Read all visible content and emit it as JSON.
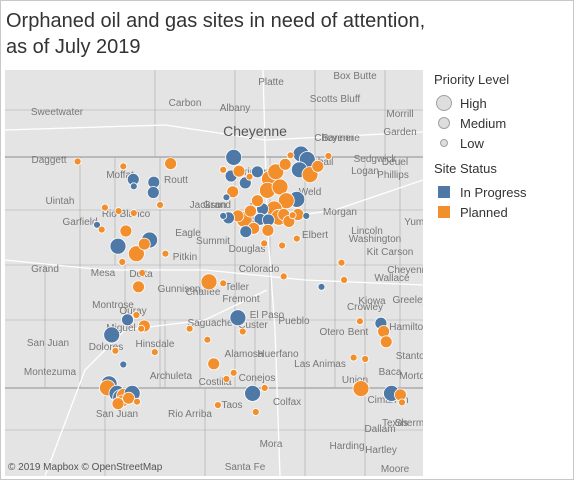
{
  "title": "Orphaned oil and gas sites in need of attention, as of July 2019",
  "attribution": "© 2019 Mapbox © OpenStreetMap",
  "colors": {
    "in_progress": "#4e79a7",
    "planned": "#f28e2b",
    "map_bg": "#e4e4e4",
    "road": "#ffffff",
    "border": "#a9a9a9",
    "label": "#777777"
  },
  "legend": {
    "priority": {
      "title": "Priority Level",
      "items": [
        {
          "label": "High",
          "size": 14
        },
        {
          "label": "Medium",
          "size": 10
        },
        {
          "label": "Low",
          "size": 6
        }
      ]
    },
    "status": {
      "title": "Site Status",
      "items": [
        {
          "label": "In Progress",
          "color": "#4e79a7"
        },
        {
          "label": "Planned",
          "color": "#f28e2b"
        }
      ]
    }
  },
  "place_labels": [
    "Platte",
    "Box Butte",
    "Carbon",
    "Albany",
    "Scotts Bluff",
    "Morrill",
    "Sweetwater",
    "Cheyenne",
    "Garden",
    "Banner",
    "Cheyenne",
    "Kimball",
    "Deuel",
    "Daggett",
    "Moffat",
    "Routt",
    "Larimer",
    "Sedgwick",
    "Logan",
    "Phillips",
    "Uintah",
    "Weld",
    "Jackson",
    "Morgan",
    "Rio Blanco",
    "Grand",
    "Boulder",
    "Washington",
    "Yuma",
    "Eagle",
    "Denver",
    "Kit Carson",
    "Garfield",
    "Douglas",
    "Summit",
    "Elbert",
    "Lincoln",
    "Grand",
    "Mesa",
    "Pitkin",
    "Delta",
    "Colorado",
    "Gunnison",
    "Chaffee",
    "Teller",
    "Wallace",
    "Cheyenne",
    "Kiowa",
    "Greeley",
    "Montrose",
    "Fremont",
    "El Paso",
    "Custer",
    "Pueblo",
    "Ouray",
    "Miguel",
    "Saguache",
    "Crowley",
    "Otero",
    "Bent",
    "Hamilton",
    "San Juan",
    "Dolores",
    "Hinsdale",
    "Alamosa",
    "Huerfano",
    "Las Animas",
    "Stanton",
    "Montezuma",
    "Archuleta",
    "Conejos",
    "Costilla",
    "Baca",
    "Morton",
    "San Juan",
    "Rio Arriba",
    "Taos",
    "Colfax",
    "Union",
    "Cimarron",
    "Texas",
    "Dallam",
    "Sherman",
    "Mora",
    "Harding",
    "Hartley",
    "Moore",
    "Santa Fe"
  ],
  "chart_data": {
    "type": "map",
    "title": "Orphaned oil and gas sites in need of attention, as of July 2019",
    "region": "Colorado",
    "encoding": {
      "color": "Site Status",
      "size": "Priority Level"
    },
    "sites": [
      {
        "lon": -107.41,
        "lat": 40.51,
        "status": "In Progress",
        "priority": "Medium"
      },
      {
        "lon": -107.4,
        "lat": 40.41,
        "status": "In Progress",
        "priority": "Low"
      },
      {
        "lon": -107.02,
        "lat": 40.47,
        "status": "In Progress",
        "priority": "Medium"
      },
      {
        "lon": -107.03,
        "lat": 40.32,
        "status": "In Progress",
        "priority": "Medium"
      },
      {
        "lon": -106.7,
        "lat": 40.74,
        "status": "Planned",
        "priority": "Medium"
      },
      {
        "lon": -106.9,
        "lat": 40.14,
        "status": "Planned",
        "priority": "Low"
      },
      {
        "lon": -108.47,
        "lat": 40.77,
        "status": "Planned",
        "priority": "Low"
      },
      {
        "lon": -107.6,
        "lat": 40.7,
        "status": "Planned",
        "priority": "Low"
      },
      {
        "lon": -107.95,
        "lat": 40.1,
        "status": "Planned",
        "priority": "Low"
      },
      {
        "lon": -107.69,
        "lat": 40.05,
        "status": "Planned",
        "priority": "Low"
      },
      {
        "lon": -107.4,
        "lat": 40.02,
        "status": "Planned",
        "priority": "Low"
      },
      {
        "lon": -108.1,
        "lat": 39.85,
        "status": "In Progress",
        "priority": "Low"
      },
      {
        "lon": -108.01,
        "lat": 39.78,
        "status": "Planned",
        "priority": "Low"
      },
      {
        "lon": -107.55,
        "lat": 39.76,
        "status": "Planned",
        "priority": "Medium"
      },
      {
        "lon": -107.1,
        "lat": 39.63,
        "status": "In Progress",
        "priority": "High"
      },
      {
        "lon": -107.2,
        "lat": 39.57,
        "status": "Planned",
        "priority": "Medium"
      },
      {
        "lon": -107.7,
        "lat": 39.54,
        "status": "In Progress",
        "priority": "High"
      },
      {
        "lon": -107.35,
        "lat": 39.43,
        "status": "Planned",
        "priority": "High"
      },
      {
        "lon": -107.62,
        "lat": 39.31,
        "status": "Planned",
        "priority": "Low"
      },
      {
        "lon": -106.8,
        "lat": 39.43,
        "status": "Planned",
        "priority": "Low"
      },
      {
        "lon": -107.24,
        "lat": 39.15,
        "status": "Planned",
        "priority": "Low"
      },
      {
        "lon": -107.31,
        "lat": 38.95,
        "status": "Planned",
        "priority": "Medium"
      },
      {
        "lon": -107.35,
        "lat": 38.54,
        "status": "Planned",
        "priority": "Low"
      },
      {
        "lon": -107.52,
        "lat": 38.47,
        "status": "In Progress",
        "priority": "Medium"
      },
      {
        "lon": -107.2,
        "lat": 38.38,
        "status": "Planned",
        "priority": "Medium"
      },
      {
        "lon": -107.26,
        "lat": 38.34,
        "status": "Planned",
        "priority": "Low"
      },
      {
        "lon": -107.82,
        "lat": 38.25,
        "status": "In Progress",
        "priority": "High"
      },
      {
        "lon": -107.75,
        "lat": 38.02,
        "status": "Planned",
        "priority": "Low"
      },
      {
        "lon": -107.0,
        "lat": 38.0,
        "status": "Planned",
        "priority": "Low"
      },
      {
        "lon": -106.34,
        "lat": 38.34,
        "status": "Planned",
        "priority": "Low"
      },
      {
        "lon": -106.0,
        "lat": 38.18,
        "status": "Planned",
        "priority": "Low"
      },
      {
        "lon": -107.6,
        "lat": 37.82,
        "status": "In Progress",
        "priority": "Low"
      },
      {
        "lon": -107.87,
        "lat": 37.54,
        "status": "In Progress",
        "priority": "High"
      },
      {
        "lon": -107.9,
        "lat": 37.48,
        "status": "Planned",
        "priority": "High"
      },
      {
        "lon": -107.72,
        "lat": 37.4,
        "status": "In Progress",
        "priority": "High"
      },
      {
        "lon": -107.65,
        "lat": 37.34,
        "status": "In Progress",
        "priority": "High"
      },
      {
        "lon": -107.58,
        "lat": 37.36,
        "status": "Planned",
        "priority": "High"
      },
      {
        "lon": -107.62,
        "lat": 37.29,
        "status": "Planned",
        "priority": "Medium"
      },
      {
        "lon": -107.5,
        "lat": 37.33,
        "status": "Planned",
        "priority": "Medium"
      },
      {
        "lon": -107.43,
        "lat": 37.4,
        "status": "In Progress",
        "priority": "High"
      },
      {
        "lon": -107.34,
        "lat": 37.28,
        "status": "Planned",
        "priority": "Low"
      },
      {
        "lon": -107.7,
        "lat": 37.25,
        "status": "Planned",
        "priority": "Medium"
      },
      {
        "lon": -105.97,
        "lat": 39.02,
        "status": "Planned",
        "priority": "High"
      },
      {
        "lon": -105.7,
        "lat": 39.0,
        "status": "Planned",
        "priority": "Low"
      },
      {
        "lon": -105.42,
        "lat": 38.5,
        "status": "In Progress",
        "priority": "High"
      },
      {
        "lon": -105.33,
        "lat": 38.3,
        "status": "Planned",
        "priority": "Low"
      },
      {
        "lon": -105.88,
        "lat": 37.83,
        "status": "Planned",
        "priority": "Medium"
      },
      {
        "lon": -105.5,
        "lat": 37.7,
        "status": "Planned",
        "priority": "Low"
      },
      {
        "lon": -105.64,
        "lat": 37.61,
        "status": "Planned",
        "priority": "Low"
      },
      {
        "lon": -105.8,
        "lat": 37.23,
        "status": "Planned",
        "priority": "Low"
      },
      {
        "lon": -105.14,
        "lat": 37.4,
        "status": "In Progress",
        "priority": "High"
      },
      {
        "lon": -104.91,
        "lat": 37.48,
        "status": "Planned",
        "priority": "Low"
      },
      {
        "lon": -105.08,
        "lat": 37.13,
        "status": "Planned",
        "priority": "Low"
      },
      {
        "lon": -105.5,
        "lat": 40.83,
        "status": "In Progress",
        "priority": "High"
      },
      {
        "lon": -105.7,
        "lat": 40.65,
        "status": "Planned",
        "priority": "Low"
      },
      {
        "lon": -105.55,
        "lat": 40.56,
        "status": "In Progress",
        "priority": "Medium"
      },
      {
        "lon": -105.4,
        "lat": 40.63,
        "status": "Planned",
        "priority": "Medium"
      },
      {
        "lon": -105.28,
        "lat": 40.46,
        "status": "In Progress",
        "priority": "Medium"
      },
      {
        "lon": -105.52,
        "lat": 40.33,
        "status": "Planned",
        "priority": "Medium"
      },
      {
        "lon": -105.64,
        "lat": 40.25,
        "status": "In Progress",
        "priority": "Low"
      },
      {
        "lon": -105.2,
        "lat": 40.55,
        "status": "Planned",
        "priority": "Low"
      },
      {
        "lon": -105.05,
        "lat": 40.62,
        "status": "In Progress",
        "priority": "Medium"
      },
      {
        "lon": -104.82,
        "lat": 40.52,
        "status": "Planned",
        "priority": "High"
      },
      {
        "lon": -104.7,
        "lat": 40.62,
        "status": "Planned",
        "priority": "High"
      },
      {
        "lon": -104.86,
        "lat": 40.35,
        "status": "Planned",
        "priority": "High"
      },
      {
        "lon": -104.62,
        "lat": 40.4,
        "status": "Planned",
        "priority": "High"
      },
      {
        "lon": -104.52,
        "lat": 40.73,
        "status": "Planned",
        "priority": "Medium"
      },
      {
        "lon": -104.42,
        "lat": 40.86,
        "status": "Planned",
        "priority": "Low"
      },
      {
        "lon": -104.22,
        "lat": 40.88,
        "status": "In Progress",
        "priority": "High"
      },
      {
        "lon": -104.1,
        "lat": 40.8,
        "status": "In Progress",
        "priority": "High"
      },
      {
        "lon": -104.25,
        "lat": 40.65,
        "status": "In Progress",
        "priority": "High"
      },
      {
        "lon": -104.05,
        "lat": 40.58,
        "status": "Planned",
        "priority": "High"
      },
      {
        "lon": -103.9,
        "lat": 40.7,
        "status": "Planned",
        "priority": "Medium"
      },
      {
        "lon": -103.7,
        "lat": 40.85,
        "status": "Planned",
        "priority": "Low"
      },
      {
        "lon": -104.3,
        "lat": 40.22,
        "status": "In Progress",
        "priority": "High"
      },
      {
        "lon": -104.5,
        "lat": 40.2,
        "status": "Planned",
        "priority": "High"
      },
      {
        "lon": -104.73,
        "lat": 40.08,
        "status": "Planned",
        "priority": "High"
      },
      {
        "lon": -104.95,
        "lat": 40.08,
        "status": "In Progress",
        "priority": "Medium"
      },
      {
        "lon": -105.05,
        "lat": 40.2,
        "status": "Planned",
        "priority": "Medium"
      },
      {
        "lon": -105.18,
        "lat": 40.05,
        "status": "Planned",
        "priority": "Medium"
      },
      {
        "lon": -105.3,
        "lat": 39.93,
        "status": "Planned",
        "priority": "High"
      },
      {
        "lon": -105.42,
        "lat": 39.98,
        "status": "Planned",
        "priority": "Medium"
      },
      {
        "lon": -105.6,
        "lat": 39.95,
        "status": "In Progress",
        "priority": "Medium"
      },
      {
        "lon": -105.7,
        "lat": 39.98,
        "status": "In Progress",
        "priority": "Low"
      },
      {
        "lon": -105.0,
        "lat": 39.93,
        "status": "In Progress",
        "priority": "Medium"
      },
      {
        "lon": -104.84,
        "lat": 39.92,
        "status": "In Progress",
        "priority": "Medium"
      },
      {
        "lon": -104.64,
        "lat": 39.96,
        "status": "Planned",
        "priority": "High"
      },
      {
        "lon": -104.55,
        "lat": 40.0,
        "status": "Planned",
        "priority": "Medium"
      },
      {
        "lon": -104.45,
        "lat": 39.9,
        "status": "Planned",
        "priority": "Medium"
      },
      {
        "lon": -104.38,
        "lat": 39.99,
        "status": "Planned",
        "priority": "Low"
      },
      {
        "lon": -104.28,
        "lat": 40.0,
        "status": "Planned",
        "priority": "Medium"
      },
      {
        "lon": -104.12,
        "lat": 39.98,
        "status": "In Progress",
        "priority": "Low"
      },
      {
        "lon": -105.12,
        "lat": 39.8,
        "status": "Planned",
        "priority": "Medium"
      },
      {
        "lon": -105.27,
        "lat": 39.75,
        "status": "In Progress",
        "priority": "Medium"
      },
      {
        "lon": -104.85,
        "lat": 39.77,
        "status": "Planned",
        "priority": "Medium"
      },
      {
        "lon": -104.92,
        "lat": 39.58,
        "status": "Planned",
        "priority": "Low"
      },
      {
        "lon": -104.58,
        "lat": 39.55,
        "status": "Planned",
        "priority": "Low"
      },
      {
        "lon": -104.3,
        "lat": 39.65,
        "status": "Planned",
        "priority": "Low"
      },
      {
        "lon": -104.55,
        "lat": 39.1,
        "status": "Planned",
        "priority": "Low"
      },
      {
        "lon": -103.83,
        "lat": 38.95,
        "status": "In Progress",
        "priority": "Low"
      },
      {
        "lon": -103.45,
        "lat": 39.3,
        "status": "Planned",
        "priority": "Low"
      },
      {
        "lon": -103.4,
        "lat": 39.05,
        "status": "Planned",
        "priority": "Low"
      },
      {
        "lon": -103.1,
        "lat": 38.45,
        "status": "Planned",
        "priority": "Low"
      },
      {
        "lon": -102.7,
        "lat": 38.42,
        "status": "In Progress",
        "priority": "Medium"
      },
      {
        "lon": -102.65,
        "lat": 38.3,
        "status": "Planned",
        "priority": "Medium"
      },
      {
        "lon": -102.6,
        "lat": 38.15,
        "status": "Planned",
        "priority": "Medium"
      },
      {
        "lon": -103.22,
        "lat": 37.92,
        "status": "Planned",
        "priority": "Low"
      },
      {
        "lon": -103.0,
        "lat": 37.9,
        "status": "Planned",
        "priority": "Low"
      },
      {
        "lon": -103.08,
        "lat": 37.47,
        "status": "Planned",
        "priority": "High"
      },
      {
        "lon": -102.5,
        "lat": 37.4,
        "status": "In Progress",
        "priority": "High"
      },
      {
        "lon": -102.33,
        "lat": 37.38,
        "status": "Planned",
        "priority": "Medium"
      },
      {
        "lon": -102.3,
        "lat": 37.27,
        "status": "Planned",
        "priority": "Low"
      }
    ]
  }
}
